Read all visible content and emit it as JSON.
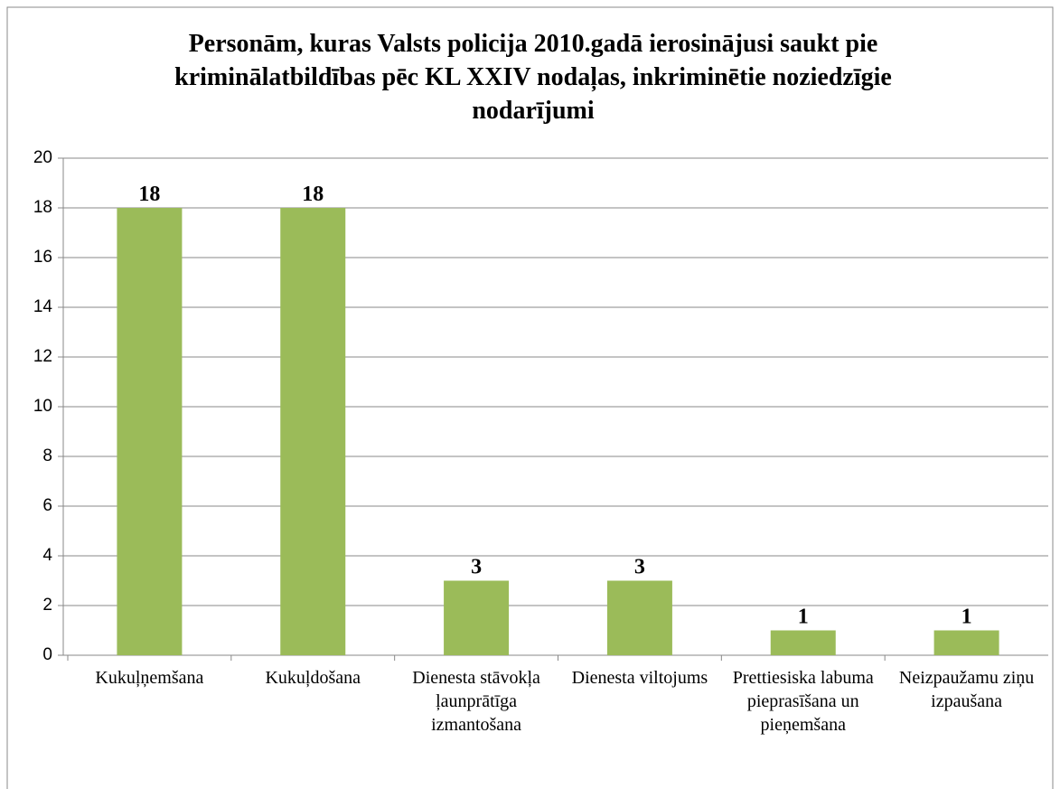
{
  "chart_data": {
    "type": "bar",
    "title": "Personām, kuras Valsts policija 2010.gadā ierosinājusi saukt pie kriminālatbildības pēc KL XXIV nodaļas, inkriminētie noziedzīgie nodarījumi",
    "categories": [
      "Kukuļņemšana",
      "Kukuļdošana",
      "Dienesta stāvokļa ļaunprātīga izmantošana",
      "Dienesta viltojums",
      "Prettiesiska labuma pieprasīšana un pieņemšana",
      "Neizpaužamu ziņu izpaušana"
    ],
    "values": [
      18,
      18,
      3,
      3,
      1,
      1
    ],
    "color": "#9bbb59",
    "ylim": [
      0,
      20
    ],
    "yticks": [
      0,
      2,
      4,
      6,
      8,
      10,
      12,
      14,
      16,
      18,
      20
    ],
    "grid": true
  }
}
